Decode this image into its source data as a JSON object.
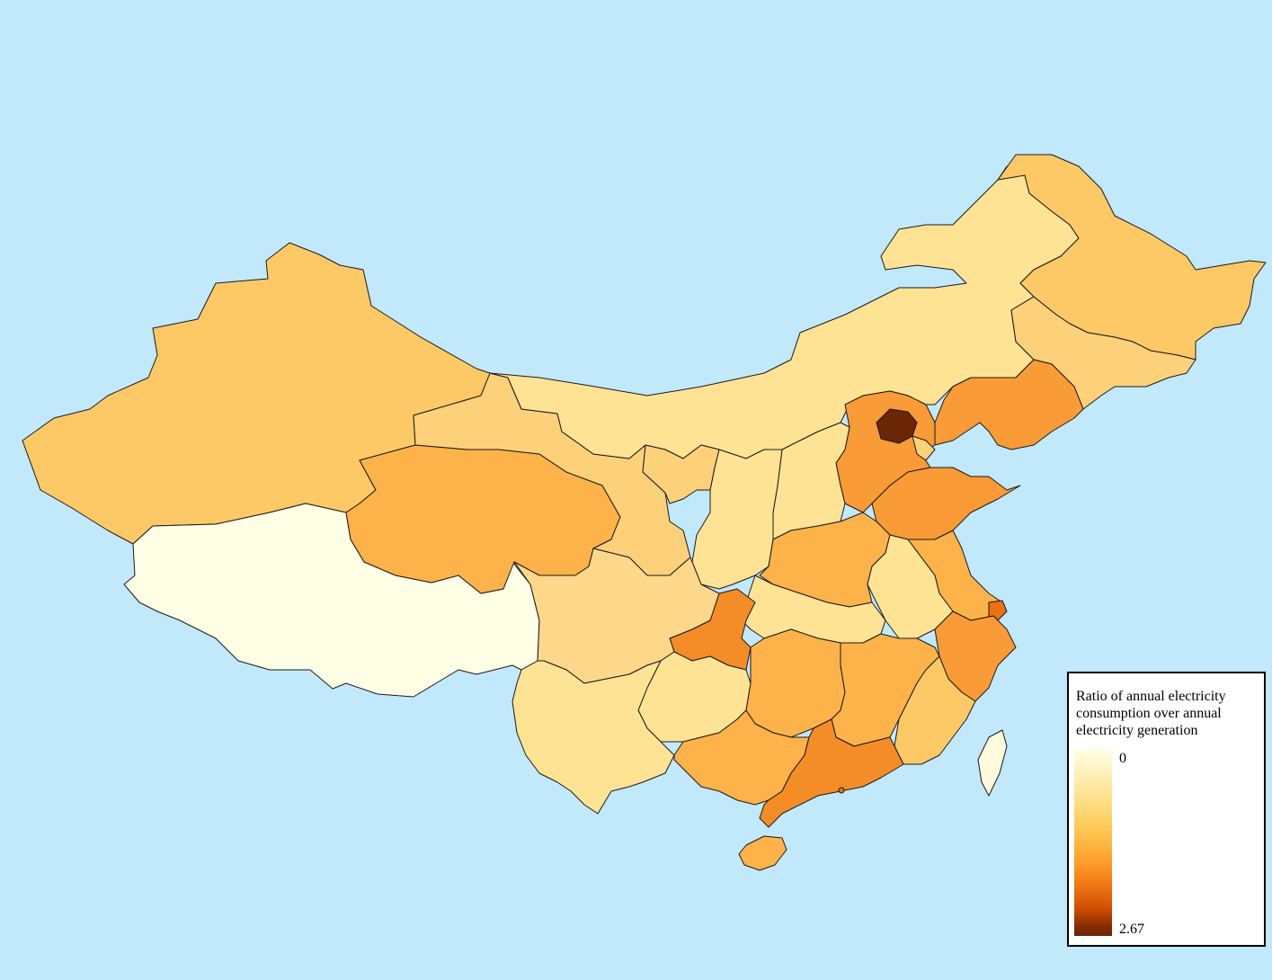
{
  "legend": {
    "title": "Ratio of annual electricity consumption over annual electricity generation",
    "min_label": "0",
    "max_label": "2.67"
  },
  "colors": {
    "ocean": "#c2e8fc",
    "border": "#1a1a1a",
    "ramp": [
      "#ffffe6",
      "#fee391",
      "#fec44f",
      "#fe9929",
      "#ec7014",
      "#cc4c02",
      "#8c2d04",
      "#662506"
    ]
  },
  "chart_data": {
    "type": "choropleth",
    "value_range": [
      0,
      2.67
    ]
  }
}
